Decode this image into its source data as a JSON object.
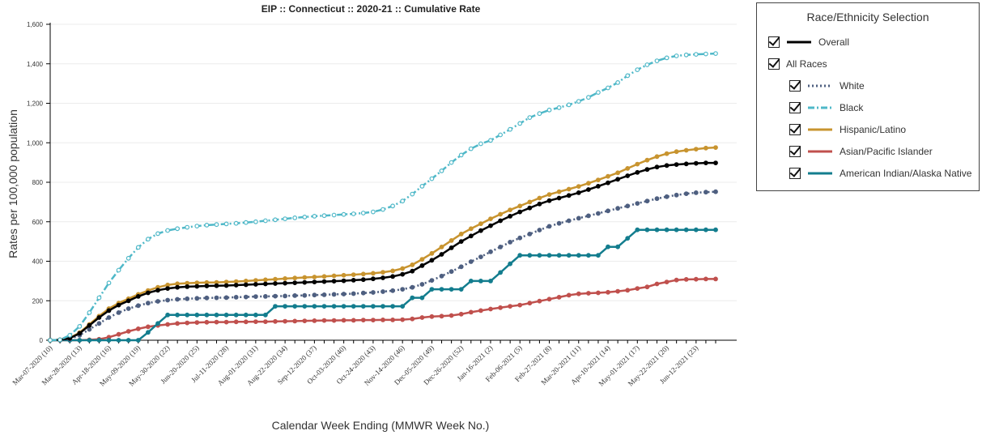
{
  "chart_data": {
    "type": "line",
    "title": "EIP :: Connecticut :: 2020-21 :: Cumulative Rate",
    "xlabel": "Calendar Week Ending (MMWR Week No.)",
    "ylabel": "Rates per 100,000 population",
    "ylim": [
      0,
      1600
    ],
    "yticks": [
      0,
      200,
      400,
      600,
      800,
      1000,
      1200,
      1400,
      1600
    ],
    "ytick_labels": [
      "0",
      "200",
      "400",
      "600",
      "800",
      "1,000",
      "1,200",
      "1,400",
      "1,600"
    ],
    "xtick_labels": [
      "Mar-07-2020 (10)",
      "Mar-28-2020 (13)",
      "Apr-18-2020 (16)",
      "May-09-2020 (19)",
      "May-30-2020 (22)",
      "Jun-20-2020 (25)",
      "Jul-11-2020 (28)",
      "Aug-01-2020 (31)",
      "Aug-22-2020 (34)",
      "Sep-12-2020 (37)",
      "Oct-03-2020 (40)",
      "Oct-24-2020 (43)",
      "Nov-14-2020 (46)",
      "Dec-05-2020 (49)",
      "Dec-26-2020 (52)",
      "Jan-16-2021 (2)",
      "Feb-06-2021 (5)",
      "Feb-27-2021 (8)",
      "Mar-20-2021 (11)",
      "Apr-10-2021 (14)",
      "May-01-2021 (17)",
      "May-22-2021 (20)",
      "Jun-12-2021 (23)"
    ],
    "legend_title": "Race/Ethnicity Selection",
    "legend_position": "right",
    "grid": true,
    "series": [
      {
        "name": "Overall",
        "color": "#000000",
        "dash": "solid",
        "values": [
          0,
          2,
          10,
          35,
          75,
          115,
          150,
          178,
          200,
          222,
          240,
          253,
          262,
          268,
          271,
          273,
          275,
          276,
          277,
          279,
          281,
          283,
          285,
          287,
          289,
          291,
          293,
          295,
          297,
          299,
          301,
          304,
          307,
          311,
          316,
          323,
          334,
          350,
          378,
          405,
          435,
          468,
          500,
          528,
          555,
          580,
          605,
          628,
          650,
          670,
          690,
          707,
          720,
          733,
          747,
          763,
          780,
          797,
          815,
          833,
          850,
          865,
          877,
          885,
          890,
          893,
          896,
          898,
          898
        ]
      },
      {
        "name": "All Races",
        "color": "#000000",
        "dash": "none",
        "values": []
      },
      {
        "name": "White",
        "color": "#4e5f80",
        "dash": "dotted",
        "values": [
          0,
          1,
          6,
          25,
          55,
          85,
          115,
          140,
          160,
          175,
          188,
          197,
          203,
          207,
          210,
          212,
          214,
          215,
          216,
          218,
          219,
          221,
          222,
          223,
          224,
          226,
          227,
          229,
          230,
          232,
          234,
          236,
          239,
          242,
          246,
          251,
          258,
          268,
          283,
          303,
          325,
          348,
          372,
          398,
          422,
          448,
          472,
          497,
          518,
          538,
          558,
          577,
          592,
          605,
          618,
          630,
          642,
          655,
          668,
          680,
          693,
          705,
          717,
          727,
          735,
          742,
          747,
          750,
          752
        ]
      },
      {
        "name": "Black",
        "color": "#4fb8c8",
        "dash": "dashdot",
        "values": [
          0,
          2,
          25,
          70,
          140,
          215,
          290,
          355,
          415,
          470,
          512,
          540,
          556,
          565,
          572,
          578,
          583,
          586,
          589,
          592,
          596,
          600,
          605,
          610,
          615,
          620,
          624,
          628,
          631,
          634,
          637,
          640,
          644,
          650,
          662,
          680,
          705,
          740,
          780,
          818,
          858,
          900,
          938,
          970,
          995,
          1012,
          1040,
          1068,
          1098,
          1128,
          1148,
          1166,
          1178,
          1192,
          1210,
          1230,
          1255,
          1278,
          1305,
          1340,
          1370,
          1395,
          1415,
          1430,
          1440,
          1445,
          1448,
          1450,
          1452
        ]
      },
      {
        "name": "Hispanic/Latino",
        "color": "#c8942f",
        "dash": "solid",
        "values": [
          0,
          2,
          12,
          38,
          80,
          122,
          160,
          188,
          210,
          232,
          252,
          268,
          280,
          286,
          289,
          291,
          292,
          293,
          295,
          297,
          300,
          303,
          306,
          309,
          312,
          315,
          318,
          320,
          323,
          326,
          329,
          332,
          335,
          339,
          344,
          351,
          363,
          382,
          410,
          440,
          472,
          505,
          538,
          565,
          590,
          615,
          638,
          660,
          680,
          700,
          720,
          738,
          752,
          765,
          779,
          795,
          812,
          830,
          848,
          870,
          892,
          912,
          930,
          945,
          955,
          962,
          968,
          973,
          976
        ]
      },
      {
        "name": "Asian/Pacific Islander",
        "color": "#c0504d",
        "dash": "solid",
        "values": [
          0,
          0,
          0,
          0,
          2,
          5,
          15,
          30,
          45,
          58,
          68,
          75,
          80,
          85,
          88,
          90,
          91,
          92,
          92,
          93,
          93,
          94,
          94,
          95,
          96,
          97,
          98,
          99,
          100,
          100,
          101,
          101,
          102,
          102,
          103,
          103,
          104,
          108,
          115,
          120,
          122,
          125,
          132,
          142,
          150,
          158,
          165,
          172,
          178,
          188,
          198,
          208,
          218,
          228,
          235,
          238,
          240,
          243,
          248,
          253,
          262,
          270,
          285,
          295,
          305,
          308,
          309,
          310,
          310
        ]
      },
      {
        "name": "American Indian/Alaska Native",
        "color": "#137d8e",
        "dash": "solid",
        "values": [
          0,
          0,
          0,
          0,
          0,
          0,
          0,
          0,
          0,
          0,
          40,
          85,
          128,
          128,
          128,
          128,
          128,
          128,
          128,
          128,
          128,
          128,
          128,
          172,
          172,
          172,
          172,
          172,
          172,
          172,
          172,
          172,
          172,
          172,
          172,
          172,
          172,
          215,
          215,
          258,
          258,
          258,
          258,
          300,
          300,
          300,
          343,
          387,
          430,
          430,
          430,
          430,
          430,
          430,
          430,
          430,
          430,
          473,
          473,
          516,
          559,
          559,
          559,
          559,
          559,
          559,
          559,
          559,
          559
        ]
      }
    ]
  }
}
